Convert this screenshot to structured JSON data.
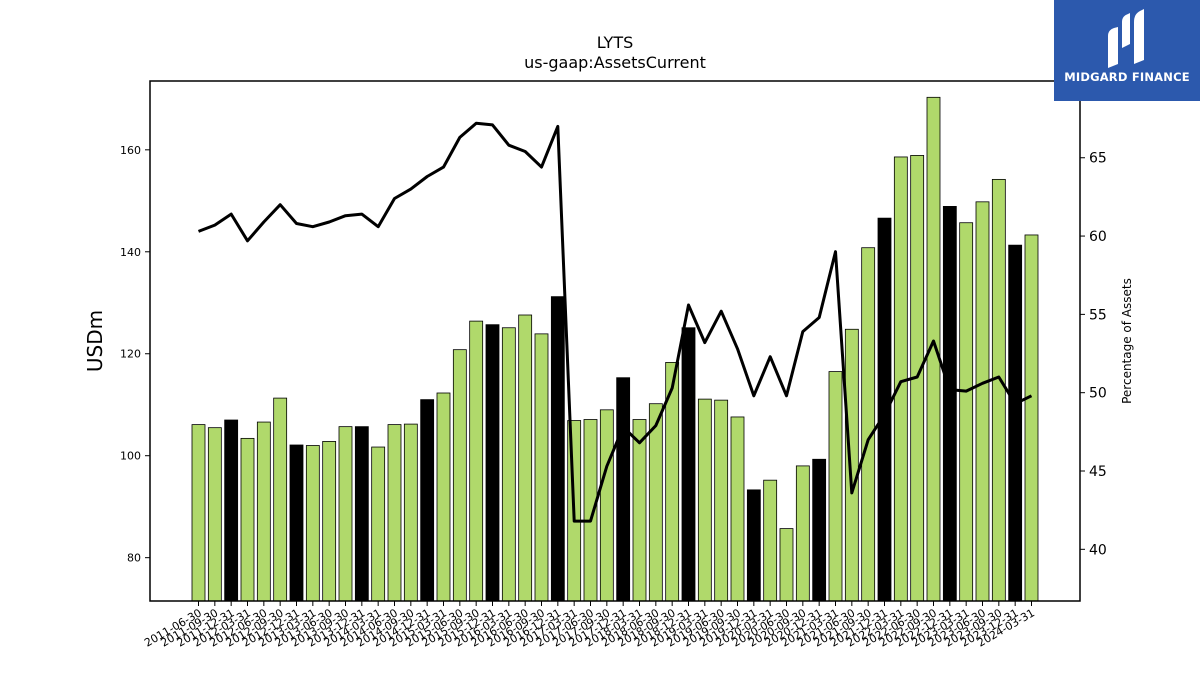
{
  "chart_data": {
    "type": "bar",
    "title": "LYTS",
    "subtitle": "us-gaap:AssetsCurrent",
    "ylabel": "USDm",
    "y2label": "Percentage of Assets",
    "ylim": [
      71.5,
      173.5
    ],
    "y2lim": [
      36.7,
      69.9
    ],
    "yticks": [
      80,
      100,
      120,
      140,
      160
    ],
    "y2ticks": [
      40,
      45,
      50,
      55,
      60,
      65
    ],
    "colors": {
      "bar": "#b0d96b",
      "highlight": "#000000",
      "line": "#000000"
    },
    "categories": [
      "2011-06-30",
      "2011-09-30",
      "2011-12-31",
      "2012-03-31",
      "2012-06-30",
      "2012-09-30",
      "2012-12-31",
      "2013-03-31",
      "2013-06-30",
      "2013-09-30",
      "2013-12-31",
      "2014-03-31",
      "2014-06-30",
      "2014-09-30",
      "2014-12-31",
      "2015-03-31",
      "2015-06-30",
      "2015-09-30",
      "2015-12-31",
      "2016-03-31",
      "2016-06-30",
      "2016-09-30",
      "2016-12-31",
      "2017-03-31",
      "2017-06-30",
      "2017-09-30",
      "2017-12-31",
      "2018-03-31",
      "2018-06-30",
      "2018-09-30",
      "2018-12-31",
      "2019-03-31",
      "2019-06-30",
      "2019-09-30",
      "2019-12-31",
      "2020-03-31",
      "2020-06-30",
      "2020-09-30",
      "2020-12-31",
      "2021-03-31",
      "2021-06-30",
      "2021-09-30",
      "2021-12-31",
      "2022-03-31",
      "2022-06-30",
      "2022-09-30",
      "2022-12-31",
      "2023-03-31",
      "2023-06-30",
      "2023-09-30",
      "2023-12-31",
      "2024-03-31"
    ],
    "values": [
      106.1,
      105.5,
      107.0,
      103.4,
      106.6,
      111.3,
      102.1,
      102.0,
      102.8,
      105.7,
      105.7,
      101.7,
      106.1,
      106.2,
      111.0,
      112.3,
      120.8,
      126.4,
      125.7,
      125.1,
      127.6,
      123.9,
      131.2,
      106.9,
      107.1,
      109.0,
      115.3,
      107.1,
      110.2,
      118.3,
      125.1,
      111.1,
      110.9,
      107.6,
      93.3,
      95.2,
      85.7,
      98.0,
      99.3,
      116.5,
      124.8,
      140.8,
      146.6,
      158.6,
      158.9,
      170.3,
      148.9,
      145.7,
      149.8,
      154.2,
      141.3,
      143.3
    ],
    "highlight": [
      false,
      false,
      true,
      false,
      false,
      false,
      true,
      false,
      false,
      false,
      true,
      false,
      false,
      false,
      true,
      false,
      false,
      false,
      true,
      false,
      false,
      false,
      true,
      false,
      false,
      false,
      true,
      false,
      false,
      false,
      true,
      false,
      false,
      false,
      true,
      false,
      false,
      false,
      true,
      false,
      false,
      false,
      true,
      false,
      false,
      false,
      true,
      false,
      false,
      false,
      true,
      false
    ],
    "percent_of_assets": [
      60.3,
      60.7,
      61.4,
      59.7,
      60.9,
      62.0,
      60.8,
      60.6,
      60.9,
      61.3,
      61.4,
      60.6,
      62.4,
      63.0,
      63.8,
      64.4,
      66.3,
      67.2,
      67.1,
      65.8,
      65.4,
      64.4,
      67.0,
      41.8,
      41.8,
      45.3,
      47.8,
      46.8,
      47.9,
      50.3,
      55.6,
      53.2,
      55.2,
      52.8,
      49.8,
      52.3,
      49.8,
      53.9,
      54.8,
      59.0,
      43.6,
      47.0,
      48.6,
      50.7,
      51.0,
      53.3,
      50.2,
      50.1,
      50.6,
      51.0,
      49.3,
      49.8
    ]
  },
  "brand": {
    "name": "MIDGARD FINANCE"
  }
}
